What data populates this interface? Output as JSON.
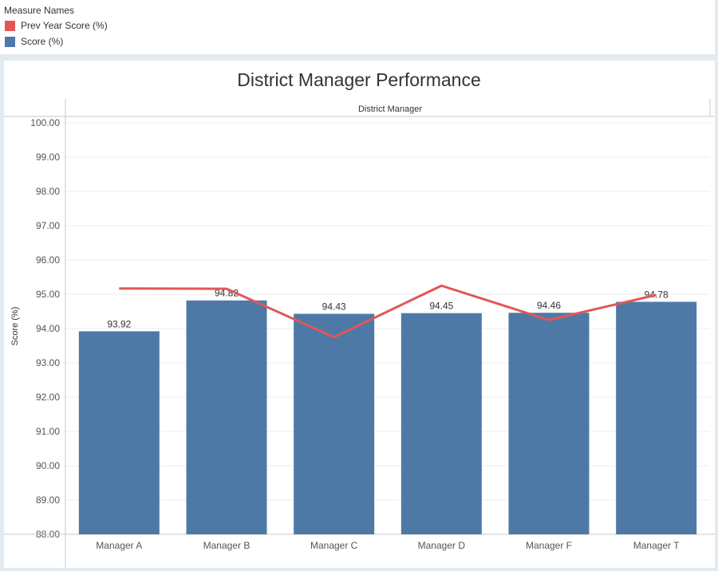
{
  "legend": {
    "title": "Measure Names",
    "items": [
      {
        "label": "Prev Year Score (%)",
        "color": "#e15759"
      },
      {
        "label": "Score (%)",
        "color": "#4e79a7"
      }
    ]
  },
  "chart_data": {
    "type": "bar",
    "title": "District Manager Performance",
    "column_header": "District Manager",
    "ylabel": "Score (%)",
    "xlabel": "",
    "ylim": [
      88,
      100
    ],
    "yticks": [
      "88.00",
      "89.00",
      "90.00",
      "91.00",
      "92.00",
      "93.00",
      "94.00",
      "95.00",
      "96.00",
      "97.00",
      "98.00",
      "99.00",
      "100.00"
    ],
    "grid": true,
    "categories": [
      "Manager A",
      "Manager B",
      "Manager C",
      "Manager D",
      "Manager F",
      "Manager T"
    ],
    "series": [
      {
        "name": "Score (%)",
        "type": "bar",
        "color": "#4e79a7",
        "values": [
          93.92,
          94.82,
          94.43,
          94.45,
          94.46,
          94.78
        ],
        "labels": [
          "93.92",
          "94.82",
          "94.43",
          "94.45",
          "94.46",
          "94.78"
        ]
      },
      {
        "name": "Prev Year Score (%)",
        "type": "line",
        "color": "#e15759",
        "values": [
          95.17,
          95.16,
          93.75,
          95.25,
          94.25,
          94.98
        ]
      }
    ]
  }
}
